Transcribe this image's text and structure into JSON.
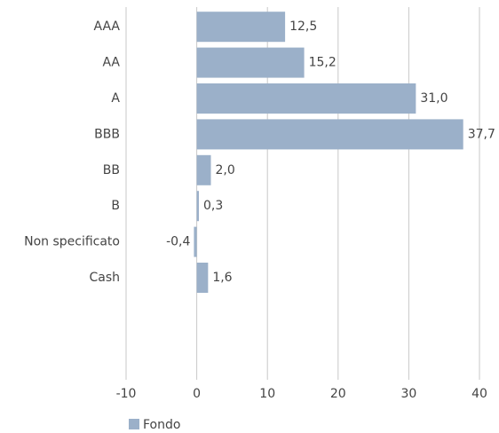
{
  "chart_data": {
    "type": "hbar",
    "categories": [
      "AAA",
      "AA",
      "A",
      "BBB",
      "BB",
      "B",
      "Non specificato",
      "Cash"
    ],
    "series": [
      {
        "name": "Fondo",
        "color": "#9bb0c9",
        "values": [
          12.5,
          15.2,
          31.0,
          37.7,
          2.0,
          0.3,
          -0.4,
          1.6
        ],
        "value_labels": [
          "12,5",
          "15,2",
          "31,0",
          "37,7",
          "2,0",
          "0,3",
          "-0,4",
          "1,6"
        ]
      }
    ],
    "xlim": [
      -10,
      40
    ],
    "xticks": [
      -10,
      0,
      10,
      20,
      30,
      40
    ],
    "grid": true,
    "legend": "bottom-left"
  }
}
